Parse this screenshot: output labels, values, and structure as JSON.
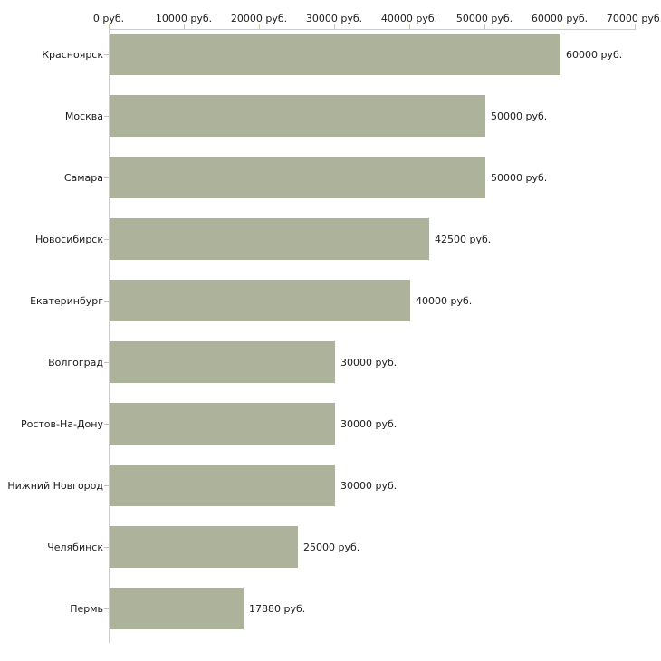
{
  "chart_data": {
    "type": "bar",
    "orientation": "horizontal",
    "title": "",
    "categories": [
      "Красноярск",
      "Москва",
      "Самара",
      "Новосибирск",
      "Екатеринбург",
      "Волгоград",
      "Ростов-На-Дону",
      "Нижний Новгород",
      "Челябинск",
      "Пермь"
    ],
    "values": [
      60000,
      50000,
      50000,
      42500,
      40000,
      30000,
      30000,
      30000,
      25000,
      17880
    ],
    "value_labels": [
      "60000 руб.",
      "50000 руб.",
      "50000 руб.",
      "42500 руб.",
      "40000 руб.",
      "30000 руб.",
      "30000 руб.",
      "30000 руб.",
      "25000 руб.",
      "17880 руб."
    ],
    "x_ticks": [
      0,
      10000,
      20000,
      30000,
      40000,
      50000,
      60000,
      70000
    ],
    "x_tick_labels": [
      "0 руб.",
      "10000 руб.",
      "20000 руб.",
      "30000 руб.",
      "40000 руб.",
      "50000 руб.",
      "60000 руб.",
      "70000 руб."
    ],
    "xlim": [
      0,
      70000
    ],
    "xlabel": "",
    "ylabel": "",
    "grid": false,
    "legend": "none",
    "colors": {
      "bar": "#adb39b",
      "axis_line": "#cbcbcb",
      "tick_mark": "#cdc9a3",
      "category_tick": "#c6c4b2",
      "text": "#1c1c1c",
      "background": "#ffffff"
    }
  }
}
